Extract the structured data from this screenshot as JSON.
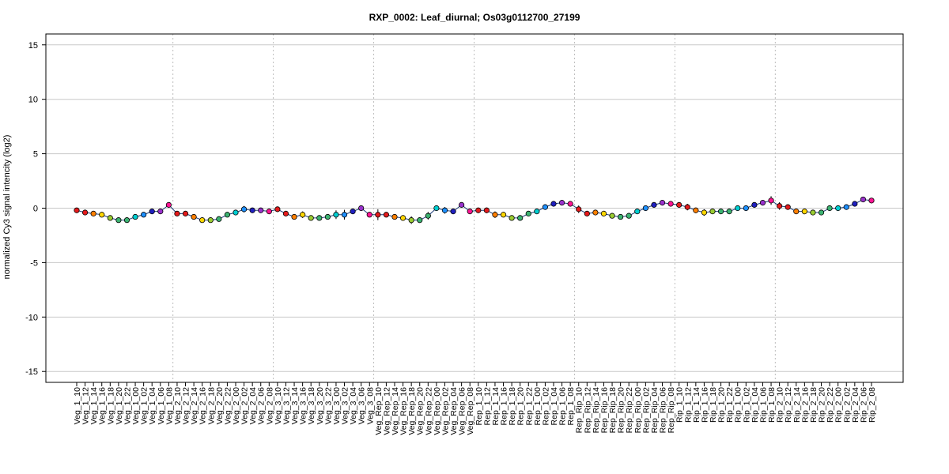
{
  "chart_data": {
    "type": "line",
    "title": "RXP_0002: Leaf_diurnal; Os03g0112700_27199",
    "xlabel": "",
    "ylabel": "normalized Cy3 signal intencity (log2)",
    "ylim": [
      -16,
      16
    ],
    "yticks": [
      -15,
      -10,
      -5,
      0,
      5,
      10,
      15
    ],
    "grid": true,
    "group_separators_after": [
      "Veg_1_08",
      "Veg_2_08",
      "Veg_3_08",
      "Veg_Rep_08",
      "Rep_1_08",
      "Rep_Rip_08",
      "Rip_1_08"
    ],
    "point_colors": [
      "#e41a1c",
      "#ff7f00",
      "#ffd700",
      "#9acd32",
      "#3cb371",
      "#00ced1",
      "#1e90ff",
      "#2020c0",
      "#9932cc",
      "#ff1493"
    ],
    "categories": [
      "Veg_1_10",
      "Veg_1_12",
      "Veg_1_14",
      "Veg_1_16",
      "Veg_1_18",
      "Veg_1_20",
      "Veg_1_22",
      "Veg_1_00",
      "Veg_1_02",
      "Veg_1_04",
      "Veg_1_06",
      "Veg_1_08",
      "Veg_2_10",
      "Veg_2_12",
      "Veg_2_14",
      "Veg_2_16",
      "Veg_2_18",
      "Veg_2_20",
      "Veg_2_22",
      "Veg_2_00",
      "Veg_2_02",
      "Veg_2_04",
      "Veg_2_06",
      "Veg_2_08",
      "Veg_3_10",
      "Veg_3_12",
      "Veg_3_14",
      "Veg_3_16",
      "Veg_3_18",
      "Veg_3_20",
      "Veg_3_22",
      "Veg_3_00",
      "Veg_3_02",
      "Veg_3_04",
      "Veg_3_06",
      "Veg_3_08",
      "Veg_Rep_10",
      "Veg_Rep_12",
      "Veg_Rep_14",
      "Veg_Rep_16",
      "Veg_Rep_18",
      "Veg_Rep_20",
      "Veg_Rep_22",
      "Veg_Rep_00",
      "Veg_Rep_02",
      "Veg_Rep_04",
      "Veg_Rep_06",
      "Veg_Rep_08",
      "Rep_1_10",
      "Rep_1_12",
      "Rep_1_14",
      "Rep_1_16",
      "Rep_1_18",
      "Rep_1_20",
      "Rep_1_22",
      "Rep_1_00",
      "Rep_1_02",
      "Rep_1_04",
      "Rep_1_06",
      "Rep_1_08",
      "Rep_Rip_10",
      "Rep_Rip_12",
      "Rep_Rip_14",
      "Rep_Rip_16",
      "Rep_Rip_18",
      "Rep_Rip_20",
      "Rep_Rip_22",
      "Rep_Rip_00",
      "Rep_Rip_02",
      "Rep_Rip_04",
      "Rep_Rip_06",
      "Rep_Rip_08",
      "Rip_1_10",
      "Rip_1_12",
      "Rip_1_14",
      "Rip_1_16",
      "Rip_1_18",
      "Rip_1_20",
      "Rip_1_22",
      "Rip_1_00",
      "Rip_1_02",
      "Rip_1_04",
      "Rip_1_06",
      "Rip_1_08",
      "Rip_2_10",
      "Rip_2_12",
      "Rip_2_14",
      "Rip_2_16",
      "Rip_2_18",
      "Rip_2_20",
      "Rip_2_22",
      "Rip_2_00",
      "Rip_2_02",
      "Rip_2_04",
      "Rip_2_06",
      "Rip_2_08"
    ],
    "values": [
      -0.2,
      -0.4,
      -0.5,
      -0.6,
      -0.9,
      -1.1,
      -1.1,
      -0.8,
      -0.6,
      -0.3,
      -0.3,
      0.3,
      -0.5,
      -0.5,
      -0.8,
      -1.1,
      -1.1,
      -1.0,
      -0.6,
      -0.4,
      -0.1,
      -0.2,
      -0.2,
      -0.3,
      -0.1,
      -0.5,
      -0.8,
      -0.6,
      -0.9,
      -0.9,
      -0.8,
      -0.6,
      -0.6,
      -0.3,
      0.0,
      -0.6,
      -0.6,
      -0.6,
      -0.8,
      -0.9,
      -1.1,
      -1.1,
      -0.7,
      0.0,
      -0.2,
      -0.3,
      0.3,
      -0.3,
      -0.2,
      -0.2,
      -0.6,
      -0.6,
      -0.9,
      -0.9,
      -0.5,
      -0.3,
      0.1,
      0.4,
      0.5,
      0.4,
      -0.1,
      -0.5,
      -0.4,
      -0.5,
      -0.7,
      -0.8,
      -0.7,
      -0.3,
      0.0,
      0.3,
      0.5,
      0.4,
      0.3,
      0.1,
      -0.2,
      -0.4,
      -0.3,
      -0.3,
      -0.3,
      0.0,
      0.0,
      0.3,
      0.5,
      0.7,
      0.2,
      0.1,
      -0.3,
      -0.3,
      -0.4,
      -0.4,
      0.0,
      0.0,
      0.1,
      0.4,
      0.8,
      0.7
    ],
    "errors": [
      0.15,
      0.1,
      0.1,
      0.1,
      0.15,
      0.15,
      0.15,
      0.1,
      0.1,
      0.1,
      0.1,
      0.15,
      0.15,
      0.1,
      0.1,
      0.1,
      0.1,
      0.1,
      0.1,
      0.1,
      0.3,
      0.1,
      0.1,
      0.1,
      0.15,
      0.15,
      0.25,
      0.3,
      0.1,
      0.1,
      0.15,
      0.4,
      0.45,
      0.2,
      0.15,
      0.1,
      0.5,
      0.15,
      0.1,
      0.15,
      0.35,
      0.25,
      0.35,
      0.1,
      0.3,
      0.15,
      0.1,
      0.1,
      0.1,
      0.25,
      0.3,
      0.1,
      0.1,
      0.1,
      0.1,
      0.1,
      0.1,
      0.1,
      0.1,
      0.1,
      0.35,
      0.1,
      0.15,
      0.1,
      0.1,
      0.15,
      0.15,
      0.1,
      0.1,
      0.1,
      0.1,
      0.1,
      0.1,
      0.3,
      0.25,
      0.3,
      0.1,
      0.1,
      0.1,
      0.1,
      0.1,
      0.1,
      0.15,
      0.4,
      0.35,
      0.2,
      0.1,
      0.1,
      0.1,
      0.1,
      0.1,
      0.1,
      0.1,
      0.1,
      0.1,
      0.1
    ]
  }
}
